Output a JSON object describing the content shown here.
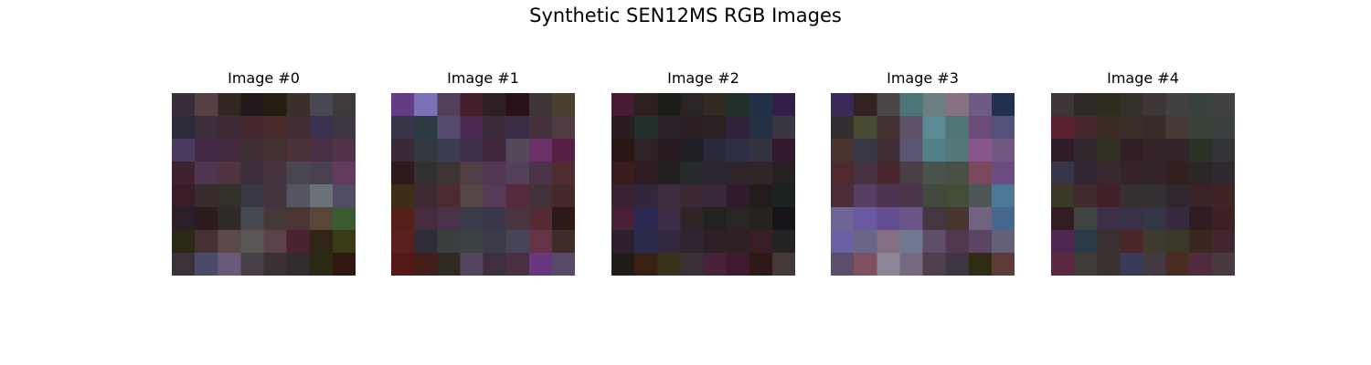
{
  "title": "Synthetic SEN12MS RGB Images",
  "chart_data": {
    "type": "heatmap",
    "title": "Synthetic SEN12MS RGB Images",
    "grid": false,
    "axes_visible": false,
    "grid_size": [
      8,
      8
    ],
    "panels": [
      {
        "title": "Image #0",
        "pixels": [
          [
            "#3a2d3a",
            "#563f45",
            "#322620",
            "#22191a",
            "#251c12",
            "#3a2f2a",
            "#484650",
            "#3e3a3a"
          ],
          [
            "#2e2c3a",
            "#3c2e3a",
            "#3e2a36",
            "#47282f",
            "#482a2a",
            "#422d33",
            "#3a3050",
            "#3e3640"
          ],
          [
            "#4a3a5e",
            "#422a42",
            "#43293e",
            "#3e2e34",
            "#433031",
            "#4a3238",
            "#4a2e46",
            "#51334a"
          ],
          [
            "#3e2230",
            "#513450",
            "#51323f",
            "#3b2e3a",
            "#453340",
            "#484650",
            "#48404e",
            "#623a5c"
          ],
          [
            "#381c28",
            "#382c2e",
            "#34302a",
            "#3a3844",
            "#44343e",
            "#545560",
            "#6c7077",
            "#524c66"
          ],
          [
            "#2c1f2c",
            "#2c1c1d",
            "#302a2a",
            "#464a50",
            "#463838",
            "#4a3434",
            "#5a4639",
            "#3a5a32"
          ],
          [
            "#2c2818",
            "#463034",
            "#5a4a4a",
            "#5a5656",
            "#5a4248",
            "#4a2230",
            "#302418",
            "#3a3a18"
          ],
          [
            "#3a3238",
            "#4a4a6a",
            "#6a5a7a",
            "#484046",
            "#3a3036",
            "#322c30",
            "#2a2a14",
            "#2e1810"
          ]
        ]
      },
      {
        "title": "Image #1",
        "pixels": [
          [
            "#643c86",
            "#7c70b8",
            "#52405a",
            "#441e2c",
            "#2e1e26",
            "#281218",
            "#3e3636",
            "#4a4030"
          ],
          [
            "#38344a",
            "#2a3a40",
            "#564a6c",
            "#4a2a50",
            "#3a2a3a",
            "#3a2c44",
            "#45303e",
            "#503a44"
          ],
          [
            "#3a2a38",
            "#303840",
            "#3c3c54",
            "#3c2e48",
            "#42283c",
            "#54485a",
            "#6a3068",
            "#562044"
          ],
          [
            "#2e1a1c",
            "#323030",
            "#3e3434",
            "#503e46",
            "#523652",
            "#54405a",
            "#4a3248",
            "#4e2c30"
          ],
          [
            "#3e2e18",
            "#3e2a32",
            "#4a2c30",
            "#544644",
            "#563a58",
            "#542a3c",
            "#42303a",
            "#44282a"
          ],
          [
            "#54201a",
            "#442c3e",
            "#4a3048",
            "#3a3a4a",
            "#3a3848",
            "#4a3440",
            "#542a34",
            "#2c1a18"
          ],
          [
            "#5a2020",
            "#2e2e38",
            "#3a3e3e",
            "#3a4244",
            "#3c3a48",
            "#464456",
            "#643446",
            "#3e2c2a"
          ],
          [
            "#541816",
            "#441e1a",
            "#2e2a22",
            "#52445e",
            "#3e2e3e",
            "#4a2e44",
            "#6a3680",
            "#58486a"
          ]
        ]
      },
      {
        "title": "Image #2",
        "pixels": [
          [
            "#481a34",
            "#2e2020",
            "#1c1c18",
            "#2a2424",
            "#302a22",
            "#22302c",
            "#223046",
            "#321e48"
          ],
          [
            "#2a1c20",
            "#23302e",
            "#2a2228",
            "#2a1e22",
            "#2a2222",
            "#30223a",
            "#253044",
            "#3a3640"
          ],
          [
            "#2a1814",
            "#2e2226",
            "#261a20",
            "#202026",
            "#2a2a3c",
            "#2e2e44",
            "#323240",
            "#32182c"
          ],
          [
            "#3a1c1c",
            "#2e1c22",
            "#242022",
            "#262a2a",
            "#2c2430",
            "#30242c",
            "#302628",
            "#262020"
          ],
          [
            "#3a2234",
            "#34263a",
            "#3c2e3e",
            "#3a2834",
            "#38283a",
            "#2e1c2c",
            "#241c1c",
            "#1a2222"
          ],
          [
            "#4a2034",
            "#2a2850",
            "#3c2c48",
            "#2e2424",
            "#222220",
            "#2a2424",
            "#262220",
            "#18141c"
          ],
          [
            "#2e1e2e",
            "#2a2a4a",
            "#32283e",
            "#2e2430",
            "#2e1e26",
            "#2e2024",
            "#3a1c24",
            "#222424"
          ],
          [
            "#201c18",
            "#3a2012",
            "#383218",
            "#383036",
            "#482238",
            "#3e1a2e",
            "#2e1818",
            "#443838"
          ]
        ]
      },
      {
        "title": "Image #3",
        "pixels": [
          [
            "#3a2858",
            "#322222",
            "#4a4646",
            "#4c7476",
            "#6c7e7e",
            "#867282",
            "#6e5a82",
            "#22304e"
          ],
          [
            "#322e2e",
            "#484a32",
            "#443030",
            "#5e5266",
            "#5c8a94",
            "#4e7674",
            "#6a4a76",
            "#52527c"
          ],
          [
            "#4a3430",
            "#383844",
            "#3e2e34",
            "#5a5470",
            "#528088",
            "#547878",
            "#86568a",
            "#705880"
          ],
          [
            "#4e2a30",
            "#483240",
            "#4a262e",
            "#4a3e46",
            "#4a544c",
            "#485048",
            "#7a4858",
            "#6c4a82"
          ],
          [
            "#4c2c38",
            "#563e62",
            "#4c3450",
            "#4a364a",
            "#42483e",
            "#424e36",
            "#4e5658",
            "#4a7896"
          ],
          [
            "#6e6496",
            "#6a58a0",
            "#644e92",
            "#6a5488",
            "#443640",
            "#46362e",
            "#706280",
            "#46688e"
          ],
          [
            "#6a60a4",
            "#6a6688",
            "#846e84",
            "#707890",
            "#604e68",
            "#52384e",
            "#5a4664",
            "#646078"
          ],
          [
            "#5a4e6c",
            "#7e5060",
            "#8c8696",
            "#76687e",
            "#4e3e4e",
            "#3e3644",
            "#302c14",
            "#603a38"
          ]
        ]
      },
      {
        "title": "Image #4",
        "pixels": [
          [
            "#3e3636",
            "#2e2a28",
            "#2e2a1c",
            "#34302a",
            "#3e3636",
            "#424040",
            "#3a4240",
            "#404242"
          ],
          [
            "#5a2030",
            "#46282e",
            "#3a2c24",
            "#3a2e28",
            "#3a2a2a",
            "#463a34",
            "#384438",
            "#3a4040"
          ],
          [
            "#2e1c28",
            "#32282e",
            "#323024",
            "#302024",
            "#342428",
            "#322428",
            "#2a3226",
            "#323438"
          ],
          [
            "#38344a",
            "#322834",
            "#3a2830",
            "#342428",
            "#322428",
            "#32201e",
            "#2a2626",
            "#302a30"
          ],
          [
            "#3a3628",
            "#402a2c",
            "#42202a",
            "#363034",
            "#363034",
            "#302630",
            "#3a2228",
            "#3e2424"
          ],
          [
            "#321e22",
            "#3e4442",
            "#3c2e46",
            "#383046",
            "#343648",
            "#382840",
            "#2e1e24",
            "#3e2024"
          ],
          [
            "#4e2850",
            "#2c3a46",
            "#3a3032",
            "#4a2628",
            "#3e3a30",
            "#3a3826",
            "#3a2820",
            "#42262e"
          ],
          [
            "#5a2840",
            "#3e3a38",
            "#3a3030",
            "#383a5a",
            "#423a40",
            "#4a2c22",
            "#522a40",
            "#4a3a3e"
          ]
        ]
      }
    ]
  }
}
